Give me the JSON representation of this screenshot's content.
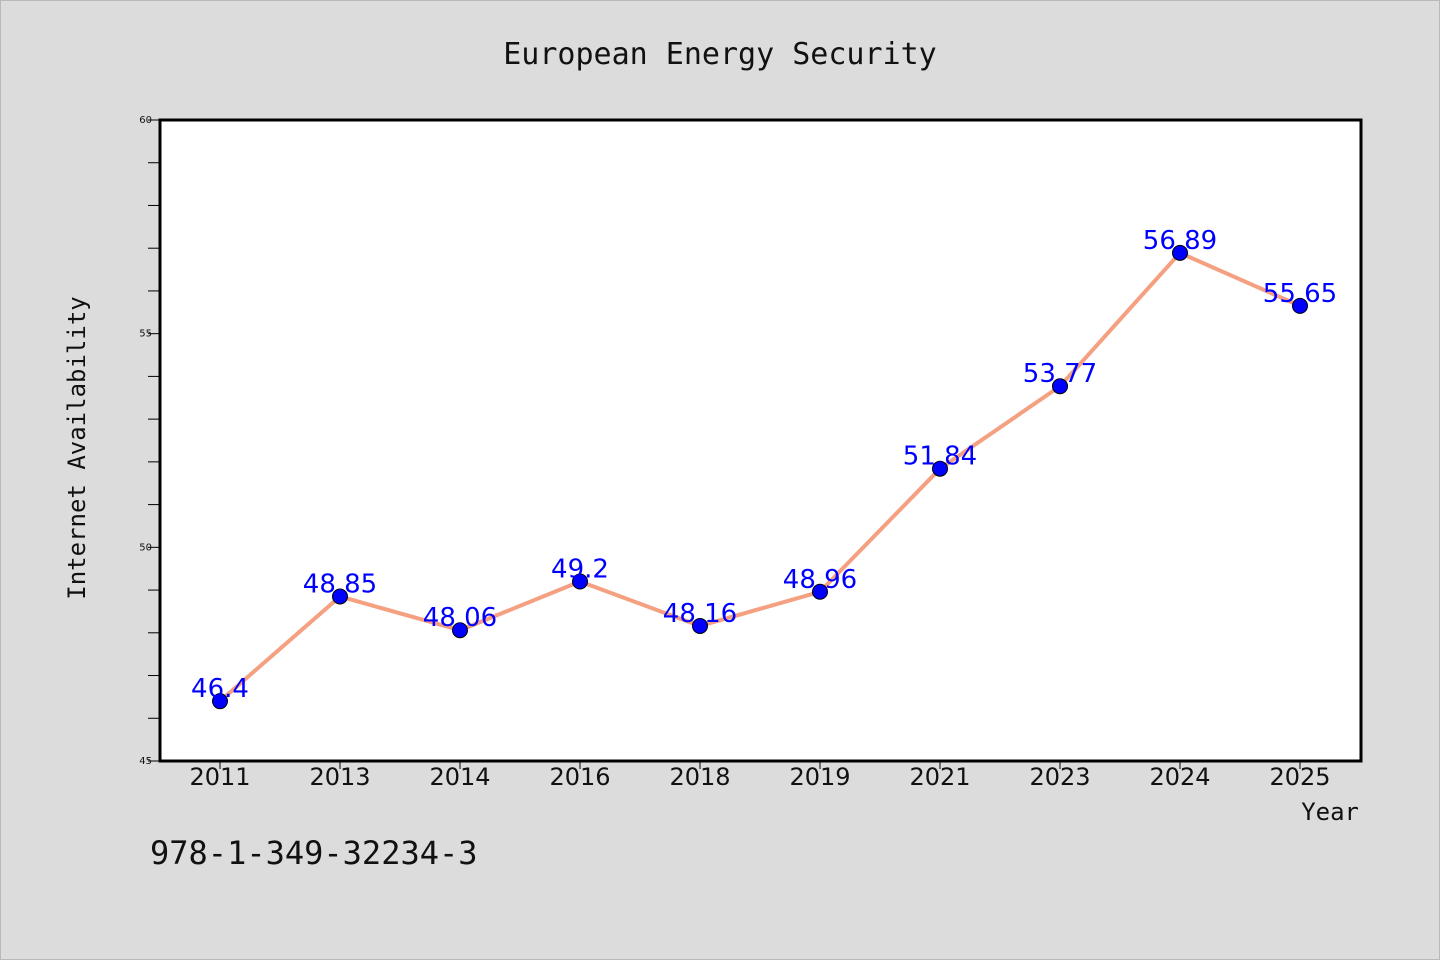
{
  "chart_data": {
    "type": "line",
    "title": "European Energy Security",
    "xlabel": "Year",
    "ylabel": "Internet Availability",
    "categories": [
      "2011",
      "2013",
      "2014",
      "2016",
      "2018",
      "2019",
      "2021",
      "2023",
      "2024",
      "2025"
    ],
    "series": [
      {
        "values": [
          46.4,
          48.85,
          48.06,
          49.2,
          48.16,
          48.96,
          51.84,
          53.77,
          56.89,
          55.65
        ],
        "data_labels": [
          "46.4",
          "48.85",
          "48.06",
          "49.2",
          "48.16",
          "48.96",
          "51.84",
          "53.77",
          "56.89",
          "55.65"
        ],
        "line_color": "#f4a081",
        "marker_color": "#0000ff"
      }
    ],
    "ylim": [
      45,
      60
    ],
    "yticks": [
      "45",
      "50",
      "55",
      "60"
    ],
    "grid": false,
    "legend": "none"
  },
  "annotation": {
    "isbn": "978-1-349-32234-3"
  }
}
